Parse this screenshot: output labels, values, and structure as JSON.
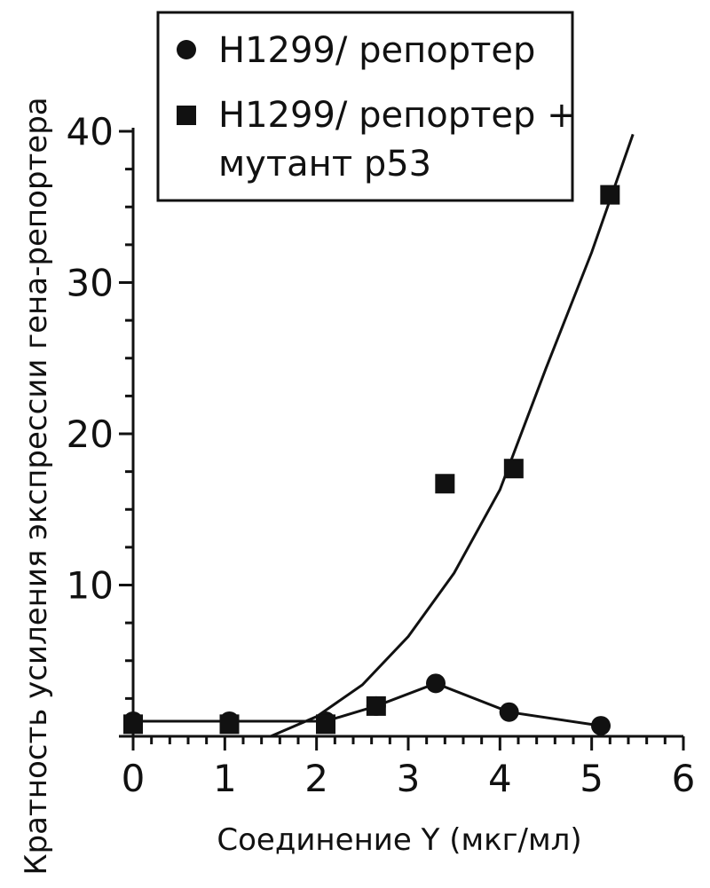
{
  "chart_data": {
    "type": "scatter",
    "xlabel": "Соединение Y (мкг/мл)",
    "ylabel": "Кратность усиления экспрессии гена-репортера",
    "xlim": [
      0,
      6
    ],
    "ylim": [
      0,
      40
    ],
    "x_ticks": [
      "0",
      "1",
      "2",
      "3",
      "4",
      "5",
      "6"
    ],
    "y_ticks": [
      "10",
      "20",
      "30",
      "40"
    ],
    "grid": false,
    "legend_position": "top",
    "series": [
      {
        "name": "H1299/ репортер",
        "marker": "circle",
        "color": "#111111",
        "connected": true,
        "points": [
          {
            "x": 0,
            "y": 1.0
          },
          {
            "x": 1.05,
            "y": 1.0
          },
          {
            "x": 2.1,
            "y": 1.0
          },
          {
            "x": 2.65,
            "y": 2.0
          },
          {
            "x": 3.3,
            "y": 3.5
          },
          {
            "x": 4.1,
            "y": 1.6
          },
          {
            "x": 5.1,
            "y": 0.7
          }
        ]
      },
      {
        "name": "H1299/ репортер + мутант p53",
        "marker": "square",
        "color": "#111111",
        "connected": false,
        "points": [
          {
            "x": 0,
            "y": 0.8
          },
          {
            "x": 1.05,
            "y": 0.8
          },
          {
            "x": 2.1,
            "y": 0.8
          },
          {
            "x": 2.65,
            "y": 2.0
          },
          {
            "x": 3.4,
            "y": 16.7
          },
          {
            "x": 4.15,
            "y": 17.7
          },
          {
            "x": 5.2,
            "y": 35.8
          }
        ]
      }
    ],
    "fit_curve": {
      "description": "quadratic trend line for mutant p53 series",
      "points": [
        {
          "x": 1.5,
          "y": 0
        },
        {
          "x": 2.0,
          "y": 1.3
        },
        {
          "x": 2.5,
          "y": 3.4
        },
        {
          "x": 3.0,
          "y": 6.6
        },
        {
          "x": 3.5,
          "y": 10.8
        },
        {
          "x": 4.0,
          "y": 16.3
        },
        {
          "x": 4.5,
          "y": 24.3
        },
        {
          "x": 5.0,
          "y": 32.0
        },
        {
          "x": 5.45,
          "y": 39.8
        }
      ]
    }
  },
  "legend": {
    "entries": [
      {
        "line1": "H1299/ репортер",
        "line2": ""
      },
      {
        "line1": "H1299/ репортер +",
        "line2": "мутант p53"
      }
    ]
  }
}
